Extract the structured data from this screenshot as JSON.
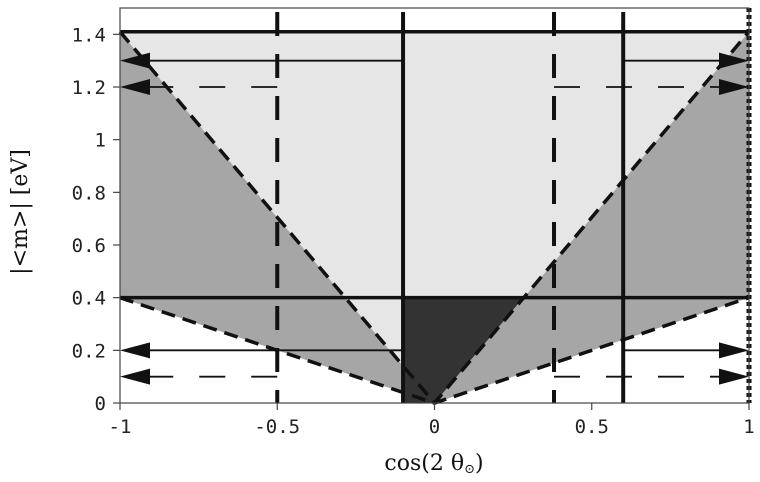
{
  "chart_data": {
    "type": "area",
    "title": "",
    "xlabel": "cos(2 θ",
    "xlabel_symbol": "⊙",
    "xlabel_close": ")",
    "ylabel": "|<m>| [eV]",
    "xlim": [
      -1,
      1
    ],
    "ylim": [
      0,
      1.5
    ],
    "xticks": [
      {
        "value": -1,
        "label": "-1"
      },
      {
        "value": -0.5,
        "label": "-0.5"
      },
      {
        "value": 0,
        "label": "0"
      },
      {
        "value": 0.5,
        "label": "0.5"
      },
      {
        "value": 1,
        "label": "1"
      }
    ],
    "yticks": [
      {
        "value": 0,
        "label": "0"
      },
      {
        "value": 0.2,
        "label": "0.2"
      },
      {
        "value": 0.4,
        "label": "0.4"
      },
      {
        "value": 0.6,
        "label": "0.6"
      },
      {
        "value": 0.8,
        "label": "0.8"
      },
      {
        "value": 1,
        "label": "1"
      },
      {
        "value": 1.2,
        "label": "1.2"
      },
      {
        "value": 1.4,
        "label": "1.4"
      }
    ],
    "regions": [
      {
        "fill": "#a6a6a6",
        "points": [
          [
            -1,
            0.4
          ],
          [
            -1,
            1.41
          ],
          [
            0,
            0
          ],
          [
            1,
            1.41
          ],
          [
            1,
            0.4
          ],
          [
            0,
            0
          ]
        ]
      },
      {
        "fill": "#e6e6e6",
        "points": [
          [
            -1,
            1.41
          ],
          [
            1,
            1.41
          ],
          [
            0,
            0
          ]
        ]
      },
      {
        "fill": "#333333",
        "points": [
          [
            -0.1,
            0
          ],
          [
            -0.1,
            0.4
          ],
          [
            0.283,
            0.4
          ],
          [
            0,
            0
          ]
        ]
      }
    ],
    "boundary_lines": [
      {
        "style": "dashed",
        "x": [
          -1,
          0,
          1
        ],
        "y": [
          1.41,
          0,
          1.41
        ]
      },
      {
        "style": "dashed",
        "x": [
          -1,
          0,
          1
        ],
        "y": [
          0.4,
          0,
          0.4
        ]
      }
    ],
    "horizontal_lines": [
      {
        "y": 1.41,
        "style": "solid"
      },
      {
        "y": 0.4,
        "style": "solid"
      }
    ],
    "vertical_lines": [
      {
        "x": -0.1,
        "style": "solid"
      },
      {
        "x": 0.6,
        "style": "solid"
      },
      {
        "x": -0.5,
        "style": "dashed"
      },
      {
        "x": 0.38,
        "style": "dashed"
      },
      {
        "x": 1.0,
        "style": "dotted"
      }
    ],
    "arrows": [
      {
        "y": 1.3,
        "style": "solid",
        "segments": [
          [
            -0.1,
            -1
          ],
          [
            0.6,
            1
          ]
        ]
      },
      {
        "y": 1.2,
        "style": "dashed",
        "segments": [
          [
            -0.5,
            -1
          ],
          [
            0.38,
            1
          ]
        ]
      },
      {
        "y": 0.2,
        "style": "solid",
        "segments": [
          [
            -0.1,
            -1
          ],
          [
            0.6,
            1
          ]
        ]
      },
      {
        "y": 0.1,
        "style": "dashed",
        "segments": [
          [
            -0.5,
            -1
          ],
          [
            0.38,
            1
          ]
        ]
      }
    ],
    "grid": false,
    "legend": "none"
  }
}
